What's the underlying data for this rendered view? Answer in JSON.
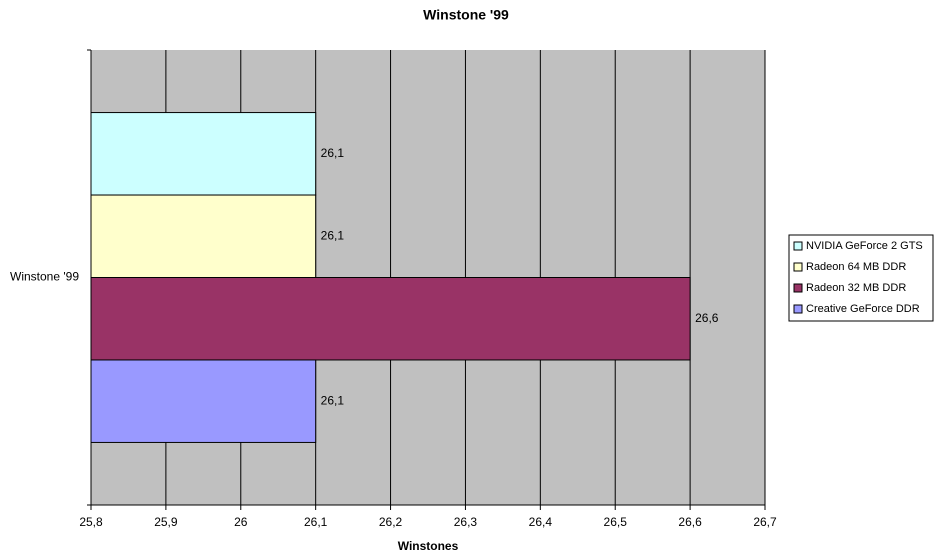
{
  "chart_data": {
    "type": "hbar",
    "title": "Winstone '99",
    "x_label": "Winstones",
    "categories": [
      "Winstone '99"
    ],
    "series": [
      {
        "name": "NVIDIA GeForce 2 GTS",
        "color": "#ccffff",
        "values": [
          26.1
        ],
        "value_labels": [
          "26,1"
        ]
      },
      {
        "name": "Radeon 64 MB DDR",
        "color": "#ffffcc",
        "values": [
          26.1
        ],
        "value_labels": [
          "26,1"
        ]
      },
      {
        "name": "Radeon 32 MB DDR",
        "color": "#993366",
        "values": [
          26.6
        ],
        "value_labels": [
          "26,6"
        ]
      },
      {
        "name": "Creative GeForce DDR",
        "color": "#9999ff",
        "values": [
          26.1
        ],
        "value_labels": [
          "26,1"
        ]
      }
    ],
    "xlim": [
      25.8,
      26.7
    ],
    "xticks": [
      {
        "value": 25.8,
        "label": "25,8"
      },
      {
        "value": 25.9,
        "label": "25,9"
      },
      26,
      {
        "value": 26.1,
        "label": "26,1"
      },
      {
        "value": 26.2,
        "label": "26,2"
      },
      {
        "value": 26.3,
        "label": "26,3"
      },
      {
        "value": 26.4,
        "label": "26,4"
      },
      {
        "value": 26.5,
        "label": "26,5"
      },
      {
        "value": 26.6,
        "label": "26,6"
      },
      {
        "value": 26.7,
        "label": "26,7"
      }
    ],
    "grid": true,
    "legend": "right"
  }
}
